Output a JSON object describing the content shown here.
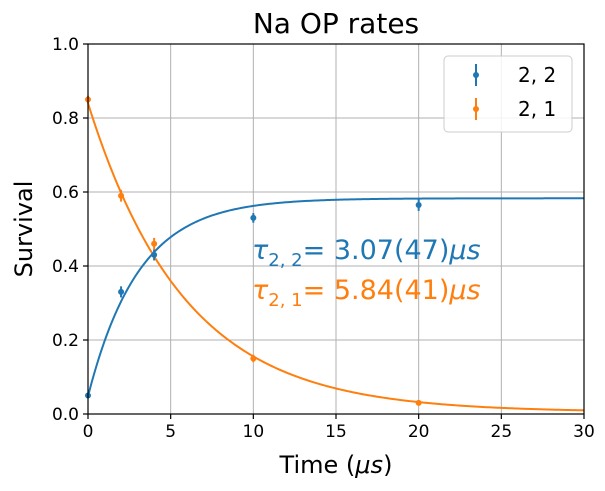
{
  "chart_data": {
    "type": "scatter",
    "title": "Na OP rates",
    "xlabel_main": "Time (",
    "xlabel_unit": "μs",
    "xlabel_close": ")",
    "ylabel": "Survival",
    "xlim": [
      0,
      30
    ],
    "ylim": [
      0,
      1.0
    ],
    "x_ticks": [
      0,
      5,
      10,
      15,
      20,
      25,
      30
    ],
    "x_tick_labels": [
      "0",
      "5",
      "10",
      "15",
      "20",
      "25",
      "30"
    ],
    "y_ticks": [
      0.0,
      0.2,
      0.4,
      0.6,
      0.8,
      1.0
    ],
    "y_tick_labels": [
      "0.0",
      "0.2",
      "0.4",
      "0.6",
      "0.8",
      "1.0"
    ],
    "grid": true,
    "legend_position": "top-right",
    "series": [
      {
        "name": "2, 2",
        "color": "#1f77b4",
        "x": [
          0,
          2,
          4,
          10,
          20
        ],
        "y": [
          0.05,
          0.33,
          0.43,
          0.53,
          0.565
        ],
        "yerr": [
          0.006,
          0.015,
          0.015,
          0.013,
          0.016
        ],
        "fit": {
          "model": "A*(1-exp(-t/tau))+C",
          "A": 0.535,
          "tau": 3.07,
          "C": 0.048
        }
      },
      {
        "name": "2, 1",
        "color": "#ff7f0e",
        "x": [
          0,
          2,
          4,
          10,
          20
        ],
        "y": [
          0.85,
          0.59,
          0.46,
          0.15,
          0.03
        ],
        "yerr": [
          0.01,
          0.016,
          0.016,
          0.01,
          0.005
        ],
        "fit": {
          "model": "A*exp(-t/tau)+C",
          "A": 0.835,
          "tau": 5.84,
          "C": 0.005
        }
      }
    ],
    "annotations": [
      {
        "symbol": "τ",
        "subscript": "2, 2",
        "value": "= 3.07(47)",
        "unit": "μs",
        "color": "#1f77b4"
      },
      {
        "symbol": "τ",
        "subscript": "2, 1",
        "value": "= 5.84(41)",
        "unit": "μs",
        "color": "#ff7f0e"
      }
    ]
  }
}
